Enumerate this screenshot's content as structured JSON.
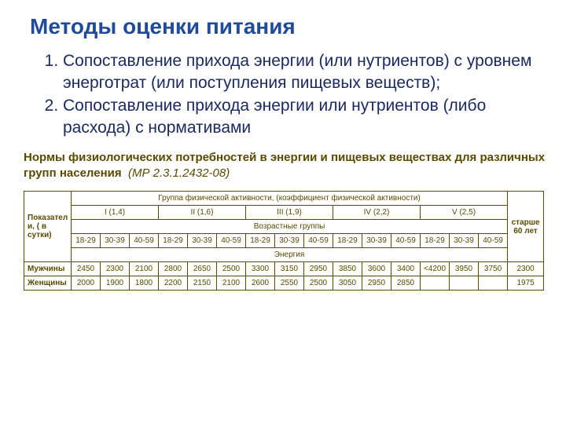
{
  "title": "Методы оценки питания",
  "list": {
    "item1": "Сопоставление прихода энергии (или нутриентов) с уровнем энерготрат (или поступления пищевых веществ);",
    "item2": "Сопоставление прихода энергии или нутриентов (либо расхода) с нормативами"
  },
  "caption": {
    "bold": "Нормы физиологических потребностей в энергии и пищевых веществах для различных групп населения",
    "italic": "(МР 2.3.1.2432-08)"
  },
  "table": {
    "header": {
      "col0": "Показатели, ( в сутки)",
      "groupTitle": "Группа физической активности, (коэффициент физической активности)",
      "elderly": "старше 60 лет",
      "groups": {
        "g1": "I (1,4)",
        "g2": "II (1,6)",
        "g3": "III (1,9)",
        "g4": "IV (2,2)",
        "g5": "V (2,5)"
      },
      "ageRowTitle": "Возрастные группы",
      "ages": {
        "a1": "18-29",
        "a2": "30-39",
        "a3": "40-59",
        "a4": "18-29",
        "a5": "30-39",
        "a6": "40-59",
        "a7": "18-29",
        "a8": "30-39",
        "a9": "40-59",
        "a10": "18-29",
        "a11": "30-39",
        "a12": "40-59",
        "a13": "18-29",
        "a14": "30-39",
        "a15": "40-59"
      },
      "energyTitle": "Энергия"
    },
    "rows": {
      "men": {
        "label": "Мужчины",
        "v": [
          "2450",
          "2300",
          "2100",
          "2800",
          "2650",
          "2500",
          "3300",
          "3150",
          "2950",
          "3850",
          "3600",
          "3400",
          "<4200",
          "3950",
          "3750",
          "2300"
        ]
      },
      "women": {
        "label": "Женщины",
        "v": [
          "2000",
          "1900",
          "1800",
          "2200",
          "2150",
          "2100",
          "2600",
          "2550",
          "2500",
          "3050",
          "2950",
          "2850",
          "",
          "",
          "",
          "1975"
        ]
      }
    }
  },
  "colors": {
    "title": "#204a9a",
    "listText": "#1a2a60",
    "tableText": "#5a4a00",
    "border": "#5a4a00",
    "background": "#ffffff"
  },
  "fonts": {
    "titleSize": 28,
    "listSize": 21,
    "captionSize": 15,
    "tableSize": 10
  }
}
